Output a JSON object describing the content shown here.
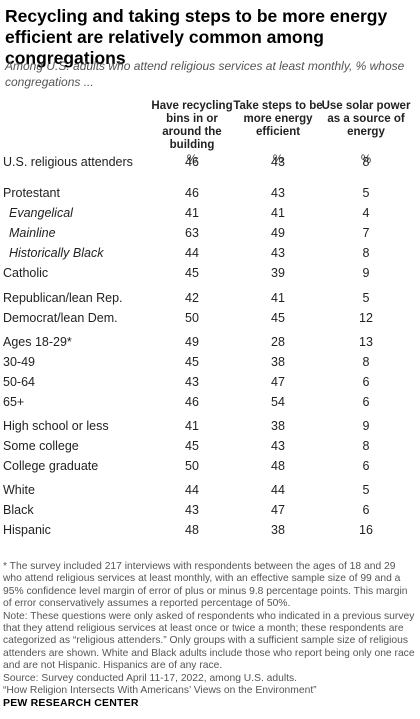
{
  "title": "Recycling and taking steps to be more energy efficient are relatively common among congregations",
  "subtitle": "Among U.S. adults who attend religious services at least monthly, % whose congregations ...",
  "chart_data": {
    "type": "table",
    "columns": [
      "Have recycling bins in or around the building",
      "Take steps to be more energy efficient",
      "Use solar power as a source of energy"
    ],
    "units": [
      "%",
      "%",
      "%"
    ],
    "rows": [
      {
        "label": "U.S. religious attenders",
        "values": [
          46,
          43,
          8
        ],
        "italic": false
      },
      {
        "label": "Protestant",
        "values": [
          46,
          43,
          5
        ],
        "italic": false
      },
      {
        "label": "Evangelical",
        "values": [
          41,
          41,
          4
        ],
        "italic": true
      },
      {
        "label": "Mainline",
        "values": [
          63,
          49,
          7
        ],
        "italic": true
      },
      {
        "label": "Historically Black",
        "values": [
          44,
          43,
          8
        ],
        "italic": true
      },
      {
        "label": "Catholic",
        "values": [
          45,
          39,
          9
        ],
        "italic": false
      },
      {
        "label": "Republican/lean Rep.",
        "values": [
          42,
          41,
          5
        ],
        "italic": false
      },
      {
        "label": "Democrat/lean Dem.",
        "values": [
          50,
          45,
          12
        ],
        "italic": false
      },
      {
        "label": "Ages 18-29*",
        "values": [
          49,
          28,
          13
        ],
        "italic": false
      },
      {
        "label": "30-49",
        "values": [
          45,
          38,
          8
        ],
        "italic": false
      },
      {
        "label": "50-64",
        "values": [
          43,
          47,
          6
        ],
        "italic": false
      },
      {
        "label": "65+",
        "values": [
          46,
          54,
          6
        ],
        "italic": false
      },
      {
        "label": "High school or less",
        "values": [
          41,
          38,
          9
        ],
        "italic": false
      },
      {
        "label": "Some college",
        "values": [
          45,
          43,
          8
        ],
        "italic": false
      },
      {
        "label": "College graduate",
        "values": [
          50,
          48,
          6
        ],
        "italic": false
      },
      {
        "label": "White",
        "values": [
          44,
          44,
          5
        ],
        "italic": false
      },
      {
        "label": "Black",
        "values": [
          43,
          47,
          6
        ],
        "italic": false
      },
      {
        "label": "Hispanic",
        "values": [
          48,
          38,
          16
        ],
        "italic": false
      }
    ]
  },
  "notes": [
    "* The survey included 217 interviews with respondents between the ages of 18 and 29 who attend religious services at least monthly, with an effective sample size of 99 and a 95% confidence level margin of error of plus or minus 9.8 percentage points. This margin of error conservatively assumes a reported percentage of 50%.",
    "Note: These questions were only asked of respondents who indicated in a previous survey that they attend religious services at least once or twice a month; these respondents are categorized as “religious attenders.” Only groups with a sufficient sample size of religious attenders are shown. White and Black adults include those who report being only one race and are not Hispanic. Hispanics are of any race.",
    "Source: Survey conducted April 11-17, 2022, among U.S. adults.",
    "“How Religion Intersects With Americans’ Views on the Environment”"
  ],
  "brand": "PEW RESEARCH CENTER"
}
